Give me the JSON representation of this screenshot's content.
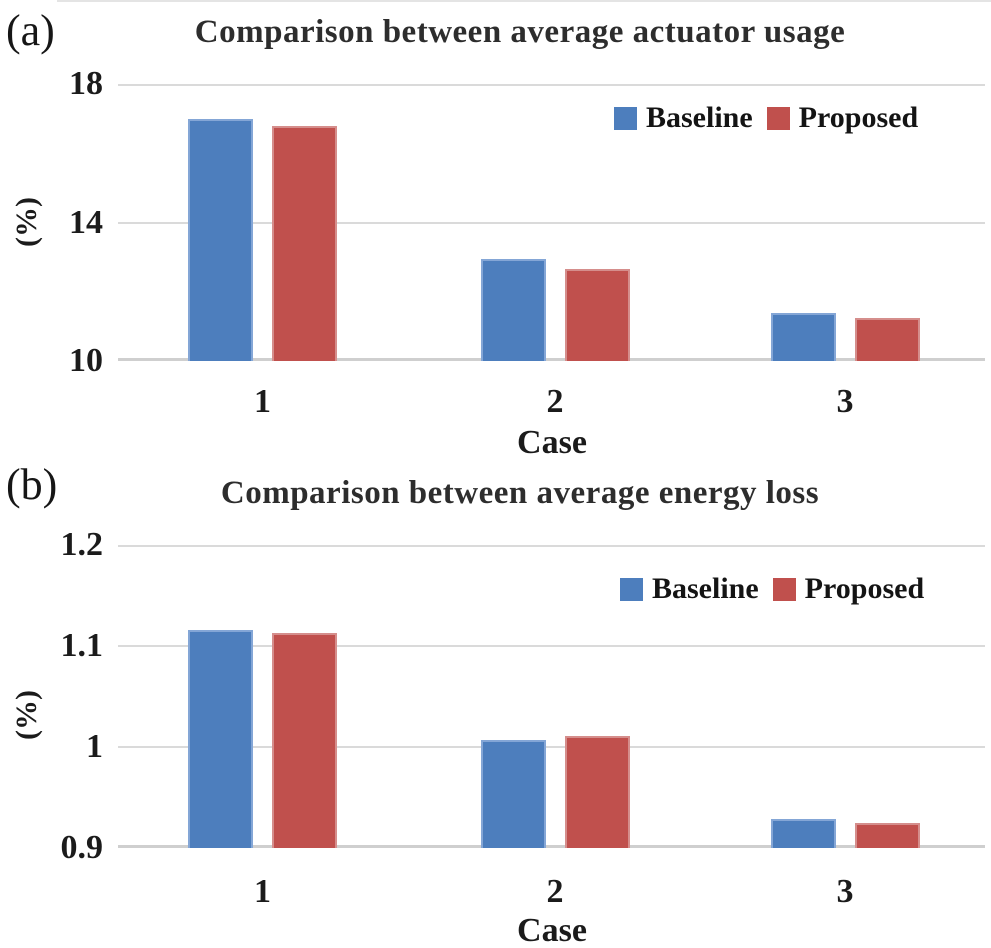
{
  "colors": {
    "baseline": "#4D7EBD",
    "baseline_edge": "#84A6D6",
    "proposed": "#C0504D",
    "proposed_edge": "#D58E8C",
    "gridline": "#DADADA",
    "baseline_gridline": "#CFCFCF",
    "axis_text": "#1B1B1B",
    "title_text": "#2D2D2D"
  },
  "chart_data": [
    {
      "type": "bar",
      "panel_label": "(a)",
      "title": "Comparison between average actuator usage",
      "ylabel": "(%)",
      "xlabel": "Case",
      "categories": [
        "1",
        "2",
        "3"
      ],
      "series": [
        {
          "name": "Baseline",
          "color_key": "baseline",
          "values": [
            17.0,
            12.95,
            11.4
          ]
        },
        {
          "name": "Proposed",
          "color_key": "proposed",
          "values": [
            16.8,
            12.65,
            11.25
          ]
        }
      ],
      "ylim": [
        10,
        18
      ],
      "yticks": [
        {
          "label": "18",
          "value": 18
        },
        {
          "label": "14",
          "value": 14
        },
        {
          "label": "10",
          "value": 10
        }
      ],
      "grid": true,
      "legend_position": "top-right",
      "legend_labels": [
        "Baseline",
        "Proposed"
      ]
    },
    {
      "type": "bar",
      "panel_label": "(b)",
      "title": "Comparison between average energy loss",
      "ylabel": "(%)",
      "xlabel": "Case",
      "categories": [
        "1",
        "2",
        "3"
      ],
      "series": [
        {
          "name": "Baseline",
          "color_key": "baseline",
          "values": [
            1.116,
            1.007,
            0.929
          ]
        },
        {
          "name": "Proposed",
          "color_key": "proposed",
          "values": [
            1.113,
            1.011,
            0.925
          ]
        }
      ],
      "ylim": [
        0.9,
        1.2
      ],
      "yticks": [
        {
          "label": "1.2",
          "value": 1.2
        },
        {
          "label": "1.1",
          "value": 1.1
        },
        {
          "label": "1",
          "value": 1
        },
        {
          "label": "0.9",
          "value": 0.9
        }
      ],
      "grid": true,
      "legend_position": "top-right",
      "legend_labels": [
        "Baseline",
        "Proposed"
      ]
    }
  ]
}
